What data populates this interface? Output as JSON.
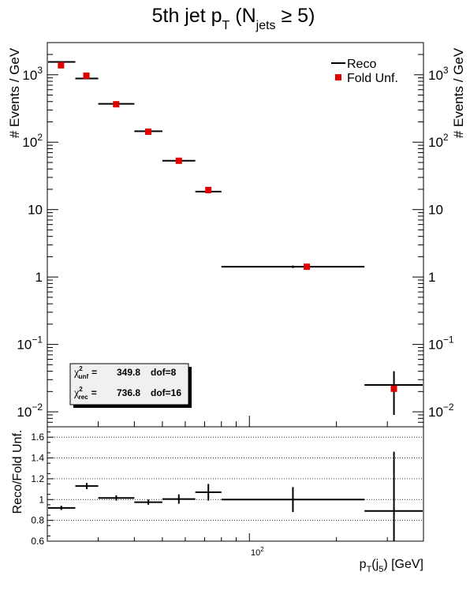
{
  "title": {
    "main": "5th jet p",
    "main_sub": "T",
    "open": " (N",
    "open_sub": "jets",
    "rest": " ≥ 5)"
  },
  "top_panel": {
    "ylabel": "# Events / GeV",
    "ylabel_right": "# Events / GeV",
    "y_ticks": [
      {
        "value": 0.01,
        "base": "10",
        "exp": "−2"
      },
      {
        "value": 0.1,
        "base": "10",
        "exp": "−1"
      },
      {
        "value": 1,
        "base": "1",
        "exp": ""
      },
      {
        "value": 10,
        "base": "10",
        "exp": ""
      },
      {
        "value": 100,
        "base": "10",
        "exp": "2"
      },
      {
        "value": 1000,
        "base": "10",
        "exp": "3"
      }
    ],
    "legend": [
      {
        "label": "Reco",
        "marker": "line",
        "color": "#000000"
      },
      {
        "label": "Fold Unf.",
        "marker": "square",
        "color": "#e00000"
      }
    ],
    "chi2_box": [
      {
        "symbol": "χ",
        "sup": "2",
        "sub": "unf",
        "eq": "=",
        "value": "349.8",
        "dof": "dof=8"
      },
      {
        "symbol": "χ",
        "sup": "2",
        "sub": "rec",
        "eq": "=",
        "value": "736.8",
        "dof": "dof=16"
      }
    ]
  },
  "bottom_panel": {
    "ylabel": "Reco/Fold Unf.",
    "y_tick_labels": [
      "0.6",
      "0.8",
      "1",
      "1.2",
      "1.4",
      "1.6"
    ],
    "x_tick_label": {
      "base": "10",
      "exp": "2"
    },
    "xlabel": {
      "p": "p",
      "sub": "T",
      "open": "(j",
      "sub2": "5",
      "close": ") [GeV]"
    }
  },
  "chart_data": [
    {
      "type": "scatter",
      "panel": "top",
      "x_scale": "log",
      "y_scale": "log",
      "xlim": [
        20,
        400
      ],
      "ylim": [
        0.006,
        3000
      ],
      "series": [
        {
          "name": "Reco",
          "style": "error-bars",
          "color": "#000000",
          "points": [
            {
              "xlo": 20,
              "xhi": 25,
              "y": 1550,
              "ylo": 1520,
              "yhi": 1580
            },
            {
              "xlo": 25,
              "xhi": 30,
              "y": 880,
              "ylo": 860,
              "yhi": 900
            },
            {
              "xlo": 30,
              "xhi": 40,
              "y": 370,
              "ylo": 360,
              "yhi": 380
            },
            {
              "xlo": 40,
              "xhi": 50,
              "y": 145,
              "ylo": 140,
              "yhi": 150
            },
            {
              "xlo": 50,
              "xhi": 65,
              "y": 53,
              "ylo": 51,
              "yhi": 55
            },
            {
              "xlo": 65,
              "xhi": 80,
              "y": 18.5,
              "ylo": 17.5,
              "yhi": 19.5
            },
            {
              "xlo": 80,
              "xhi": 250,
              "y": 1.42,
              "ylo": 1.36,
              "yhi": 1.48
            },
            {
              "xlo": 250,
              "xhi": 400,
              "y": 0.025,
              "ylo": 0.009,
              "yhi": 0.04
            }
          ]
        },
        {
          "name": "Fold Unf.",
          "style": "markers",
          "color": "#e00000",
          "points": [
            {
              "x": 22.3,
              "y": 1380
            },
            {
              "x": 27.3,
              "y": 970
            },
            {
              "x": 34.6,
              "y": 365
            },
            {
              "x": 44.7,
              "y": 143
            },
            {
              "x": 57,
              "y": 53
            },
            {
              "x": 72.1,
              "y": 19.5
            },
            {
              "x": 158,
              "y": 1.42
            },
            {
              "x": 316,
              "y": 0.022
            }
          ]
        }
      ]
    },
    {
      "type": "scatter",
      "panel": "bottom",
      "x_scale": "log",
      "xlim": [
        20,
        400
      ],
      "ylim": [
        0.6,
        1.7
      ],
      "grid": true,
      "series": [
        {
          "style": "error-bars",
          "color": "#000000",
          "points": [
            {
              "xlo": 20,
              "xhi": 25,
              "y": 0.92,
              "ylo": 0.9,
              "yhi": 0.94
            },
            {
              "xlo": 25,
              "xhi": 30,
              "y": 1.13,
              "ylo": 1.1,
              "yhi": 1.16
            },
            {
              "xlo": 30,
              "xhi": 40,
              "y": 1.015,
              "ylo": 0.99,
              "yhi": 1.04
            },
            {
              "xlo": 40,
              "xhi": 50,
              "y": 0.975,
              "ylo": 0.95,
              "yhi": 1.0
            },
            {
              "xlo": 50,
              "xhi": 65,
              "y": 1.005,
              "ylo": 0.96,
              "yhi": 1.05
            },
            {
              "xlo": 65,
              "xhi": 80,
              "y": 1.07,
              "ylo": 0.99,
              "yhi": 1.15
            },
            {
              "xlo": 80,
              "xhi": 250,
              "y": 1.0,
              "ylo": 0.88,
              "yhi": 1.12
            },
            {
              "xlo": 250,
              "xhi": 400,
              "y": 0.89,
              "ylo": 0.6,
              "yhi": 1.46
            }
          ]
        }
      ]
    }
  ]
}
